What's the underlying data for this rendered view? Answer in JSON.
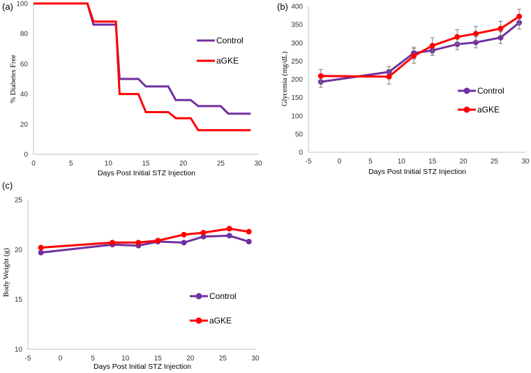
{
  "chart_data": [
    {
      "id": "a",
      "panel_label": "(a)",
      "type": "line",
      "step": true,
      "xlabel": "Days Post Initial  STZ Injection",
      "ylabel": "% Diabetes Free",
      "xlim": [
        0,
        30
      ],
      "ylim": [
        0,
        100
      ],
      "xticks": [
        0,
        5,
        10,
        15,
        20,
        25,
        30
      ],
      "yticks": [
        0,
        20,
        40,
        60,
        80,
        100
      ],
      "legend_position": "right",
      "series": [
        {
          "name": "Control",
          "color": "#7030a0",
          "points": [
            [
              0,
              100
            ],
            [
              7.2,
              100
            ],
            [
              8,
              86
            ],
            [
              11,
              86
            ],
            [
              11.5,
              50
            ],
            [
              14,
              50
            ],
            [
              15,
              45
            ],
            [
              18,
              45
            ],
            [
              19,
              36
            ],
            [
              21,
              36
            ],
            [
              22,
              32
            ],
            [
              25,
              32
            ],
            [
              26,
              27
            ],
            [
              29,
              27
            ]
          ]
        },
        {
          "name": "aGKE",
          "color": "#ff0000",
          "points": [
            [
              0,
              100
            ],
            [
              7.2,
              100
            ],
            [
              8,
              88
            ],
            [
              11,
              88
            ],
            [
              11.5,
              40
            ],
            [
              14,
              40
            ],
            [
              15,
              28
            ],
            [
              18,
              28
            ],
            [
              19,
              24
            ],
            [
              21,
              24
            ],
            [
              22,
              16
            ],
            [
              29,
              16
            ]
          ]
        }
      ]
    },
    {
      "id": "b",
      "panel_label": "(b)",
      "type": "line",
      "xlabel": "Days Post Initial  STZ Injection",
      "ylabel": "Glycemia (mg/dL)",
      "xlim": [
        -5,
        30
      ],
      "ylim": [
        0,
        400
      ],
      "xticks": [
        -5,
        0,
        5,
        10,
        15,
        20,
        25,
        30
      ],
      "yticks": [
        0,
        50,
        100,
        150,
        200,
        250,
        300,
        350,
        400
      ],
      "legend_position": "right",
      "series": [
        {
          "name": "Control",
          "color": "#7030a0",
          "x": [
            -3,
            8,
            12,
            15,
            19,
            22,
            26,
            29
          ],
          "y": [
            193,
            220,
            272,
            279,
            296,
            301,
            314,
            355
          ],
          "err": [
            15,
            15,
            16,
            14,
            15,
            15,
            16,
            18
          ]
        },
        {
          "name": "aGKE",
          "color": "#ff0000",
          "x": [
            -3,
            8,
            12,
            15,
            19,
            22,
            26,
            29
          ],
          "y": [
            209,
            207,
            264,
            292,
            316,
            325,
            339,
            372
          ],
          "err": [
            18,
            20,
            20,
            22,
            20,
            20,
            20,
            20
          ]
        }
      ]
    },
    {
      "id": "c",
      "panel_label": "(c)",
      "type": "line",
      "xlabel": "Days Post Initial  STZ Injection",
      "ylabel": "Body Weight  (g)",
      "xlim": [
        -5,
        30
      ],
      "ylim": [
        10,
        25
      ],
      "xticks": [
        -5,
        0,
        5,
        10,
        15,
        20,
        25,
        30
      ],
      "yticks": [
        10,
        15,
        20,
        25
      ],
      "legend_position": "right",
      "series": [
        {
          "name": "Control",
          "color": "#7030a0",
          "x": [
            -3,
            8,
            12,
            15,
            19,
            22,
            26,
            29
          ],
          "y": [
            19.7,
            20.5,
            20.4,
            20.8,
            20.7,
            21.3,
            21.4,
            20.8
          ]
        },
        {
          "name": "aGKE",
          "color": "#ff0000",
          "x": [
            -3,
            8,
            12,
            15,
            19,
            22,
            26,
            29
          ],
          "y": [
            20.2,
            20.7,
            20.7,
            20.9,
            21.5,
            21.7,
            22.1,
            21.8
          ]
        }
      ]
    }
  ]
}
